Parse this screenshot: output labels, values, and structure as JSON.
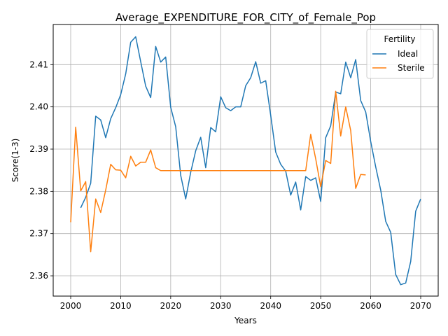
{
  "chart_data": {
    "type": "line",
    "title": "Average_EXPENDITURE_FOR_CITY_of_Female_Pop",
    "xlabel": "Years",
    "ylabel": "Score(1-3)",
    "xlim": [
      1996.5,
      2073.5
    ],
    "ylim": [
      2.3552,
      2.4195
    ],
    "xticks": [
      2000,
      2010,
      2020,
      2030,
      2040,
      2050,
      2060,
      2070
    ],
    "yticks": [
      2.36,
      2.37,
      2.38,
      2.39,
      2.4,
      2.41
    ],
    "xtick_labels": [
      "2000",
      "2010",
      "2020",
      "2030",
      "2040",
      "2050",
      "2060",
      "2070"
    ],
    "ytick_labels": [
      "2.36",
      "2.37",
      "2.38",
      "2.39",
      "2.40",
      "2.41"
    ],
    "grid": true,
    "legend": {
      "title": "Fertility",
      "placement": "top-right"
    },
    "series": [
      {
        "name": "Ideal",
        "color": "#1f77b4",
        "x": [
          2002,
          2003,
          2004,
          2005,
          2006,
          2007,
          2008,
          2009,
          2010,
          2011,
          2012,
          2013,
          2014,
          2015,
          2016,
          2017,
          2018,
          2019,
          2020,
          2021,
          2022,
          2023,
          2024,
          2025,
          2026,
          2027,
          2028,
          2029,
          2030,
          2031,
          2032,
          2033,
          2034,
          2035,
          2036,
          2037,
          2038,
          2039,
          2040,
          2041,
          2042,
          2043,
          2044,
          2045,
          2046,
          2047,
          2048,
          2049,
          2050,
          2051,
          2052,
          2053,
          2054,
          2055,
          2056,
          2057,
          2058,
          2059,
          2060,
          2061,
          2062,
          2063,
          2064,
          2065,
          2066,
          2067,
          2068,
          2069,
          2070
        ],
        "y": [
          2.3761,
          2.3786,
          2.3819,
          2.3978,
          2.3969,
          2.3927,
          2.3972,
          2.3998,
          2.4029,
          2.4078,
          2.4153,
          2.4166,
          2.4107,
          2.4049,
          2.4022,
          2.4143,
          2.4106,
          2.4118,
          2.3999,
          2.3953,
          2.3838,
          2.3782,
          2.3845,
          2.3896,
          2.3928,
          2.3856,
          2.3951,
          2.3941,
          2.4024,
          2.3998,
          2.3991,
          2.4,
          2.4,
          2.405,
          2.4069,
          2.4107,
          2.4056,
          2.4062,
          2.398,
          2.3893,
          2.3864,
          2.3848,
          2.3791,
          2.3822,
          2.3756,
          2.3835,
          2.3826,
          2.3832,
          2.3776,
          2.3927,
          2.3955,
          2.4035,
          2.4031,
          2.4106,
          2.4069,
          2.4112,
          2.4015,
          2.3988,
          2.3918,
          2.3858,
          2.3803,
          2.3729,
          2.3703,
          2.3603,
          2.3579,
          2.3583,
          2.3634,
          2.3753,
          2.3782
        ]
      },
      {
        "name": "Sterile",
        "color": "#ff7f0e",
        "x": [
          2000,
          2001,
          2002,
          2003,
          2004,
          2005,
          2006,
          2007,
          2008,
          2009,
          2010,
          2011,
          2012,
          2013,
          2014,
          2015,
          2016,
          2017,
          2018,
          2019,
          2020,
          2021,
          2022,
          2023,
          2024,
          2025,
          2026,
          2027,
          2028,
          2029,
          2030,
          2031,
          2032,
          2033,
          2034,
          2035,
          2036,
          2037,
          2038,
          2039,
          2040,
          2041,
          2042,
          2043,
          2044,
          2045,
          2046,
          2047,
          2048,
          2049,
          2050,
          2051,
          2052,
          2053,
          2054,
          2055,
          2056,
          2057,
          2058,
          2059
        ],
        "y": [
          2.3727,
          2.3952,
          2.3801,
          2.3823,
          2.3657,
          2.3782,
          2.375,
          2.3803,
          2.3864,
          2.3851,
          2.385,
          2.3832,
          2.3883,
          2.386,
          2.3869,
          2.3869,
          2.3898,
          2.3856,
          2.3849,
          2.3849,
          2.3849,
          2.3849,
          2.3849,
          2.3849,
          2.3849,
          2.3849,
          2.3849,
          2.3849,
          2.3849,
          2.3849,
          2.3849,
          2.3849,
          2.3849,
          2.3849,
          2.3849,
          2.3849,
          2.3849,
          2.3849,
          2.3849,
          2.3849,
          2.3849,
          2.3849,
          2.3849,
          2.3849,
          2.3849,
          2.3849,
          2.3849,
          2.3849,
          2.3935,
          2.3877,
          2.3811,
          2.3873,
          2.3866,
          2.4037,
          2.3931,
          2.4,
          2.3944,
          2.3807,
          2.384,
          2.3839
        ]
      }
    ]
  }
}
